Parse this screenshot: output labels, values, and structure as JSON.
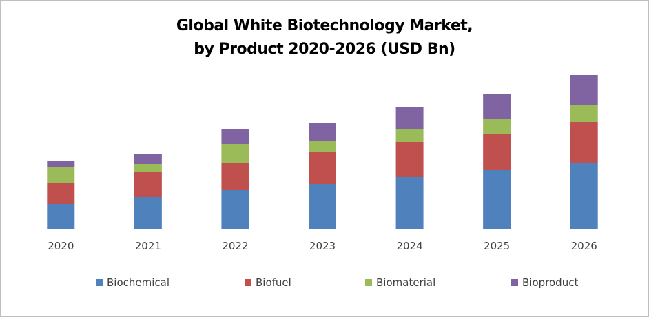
{
  "chart_data": {
    "type": "bar",
    "stacked": true,
    "title": "Global White Biotechnology Market, by Product 2020-2026 (USD Bn)",
    "title_lines": [
      "Global White Biotechnology Market,",
      "by Product 2020-2026 (USD Bn)"
    ],
    "xlabel": "",
    "ylabel": "",
    "categories": [
      "2020",
      "2021",
      "2022",
      "2023",
      "2024",
      "2025",
      "2026"
    ],
    "series": [
      {
        "name": "Biochemical",
        "color": "#4f81bd",
        "values": [
          3.6,
          4.6,
          5.6,
          6.5,
          7.5,
          8.5,
          9.5
        ]
      },
      {
        "name": "Biofuel",
        "color": "#c0504d",
        "values": [
          3.1,
          3.6,
          4.0,
          4.6,
          5.1,
          5.3,
          6.0
        ]
      },
      {
        "name": "Biomaterial",
        "color": "#9bbb59",
        "values": [
          2.2,
          1.2,
          2.7,
          1.7,
          1.9,
          2.2,
          2.4
        ]
      },
      {
        "name": "Bioproduct",
        "color": "#8064a2",
        "values": [
          1.0,
          1.4,
          2.2,
          2.6,
          3.2,
          3.6,
          4.4
        ]
      }
    ],
    "ylim": [
      0,
      24
    ],
    "grid": false,
    "y_axis_visible": false,
    "legend_position": "bottom"
  }
}
